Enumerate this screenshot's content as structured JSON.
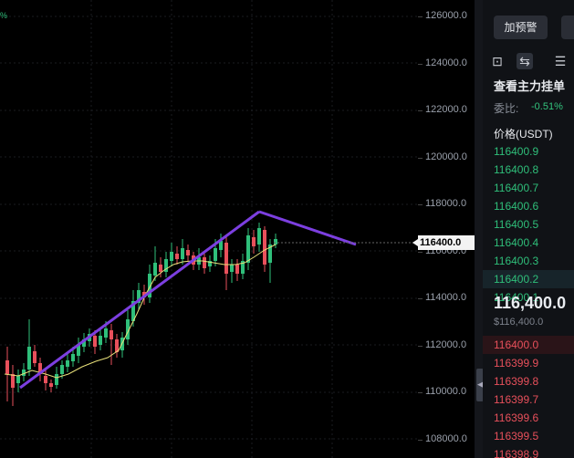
{
  "axis": {
    "ticks": [
      "126000.0",
      "124000.0",
      "122000.0",
      "120000.0",
      "118000.0",
      "116000.0",
      "114000.0",
      "112000.0",
      "110000.0",
      "108000.0"
    ],
    "current_price_tag": "116400.0"
  },
  "panel": {
    "alert_button": "加预警",
    "orderbook_title": "查看主力挂单",
    "ratio_label": "委比:",
    "ratio_value": "-0.51%",
    "price_header": "价格(USDT)",
    "bids": [
      "116400.9",
      "116400.8",
      "116400.7",
      "116400.6",
      "116400.5",
      "116400.4",
      "116400.3",
      "116400.2",
      "116400.1"
    ],
    "mid_price": "116,400.0",
    "mid_price_usd": "$116,400.0",
    "asks": [
      "116400.0",
      "116399.9",
      "116399.8",
      "116399.7",
      "116399.6",
      "116399.5",
      "116398.9"
    ]
  },
  "colors": {
    "bull": "#2fbf7a",
    "bear": "#e8505b",
    "trendline": "#7c3fe0",
    "ma": "#e8e07a"
  }
}
